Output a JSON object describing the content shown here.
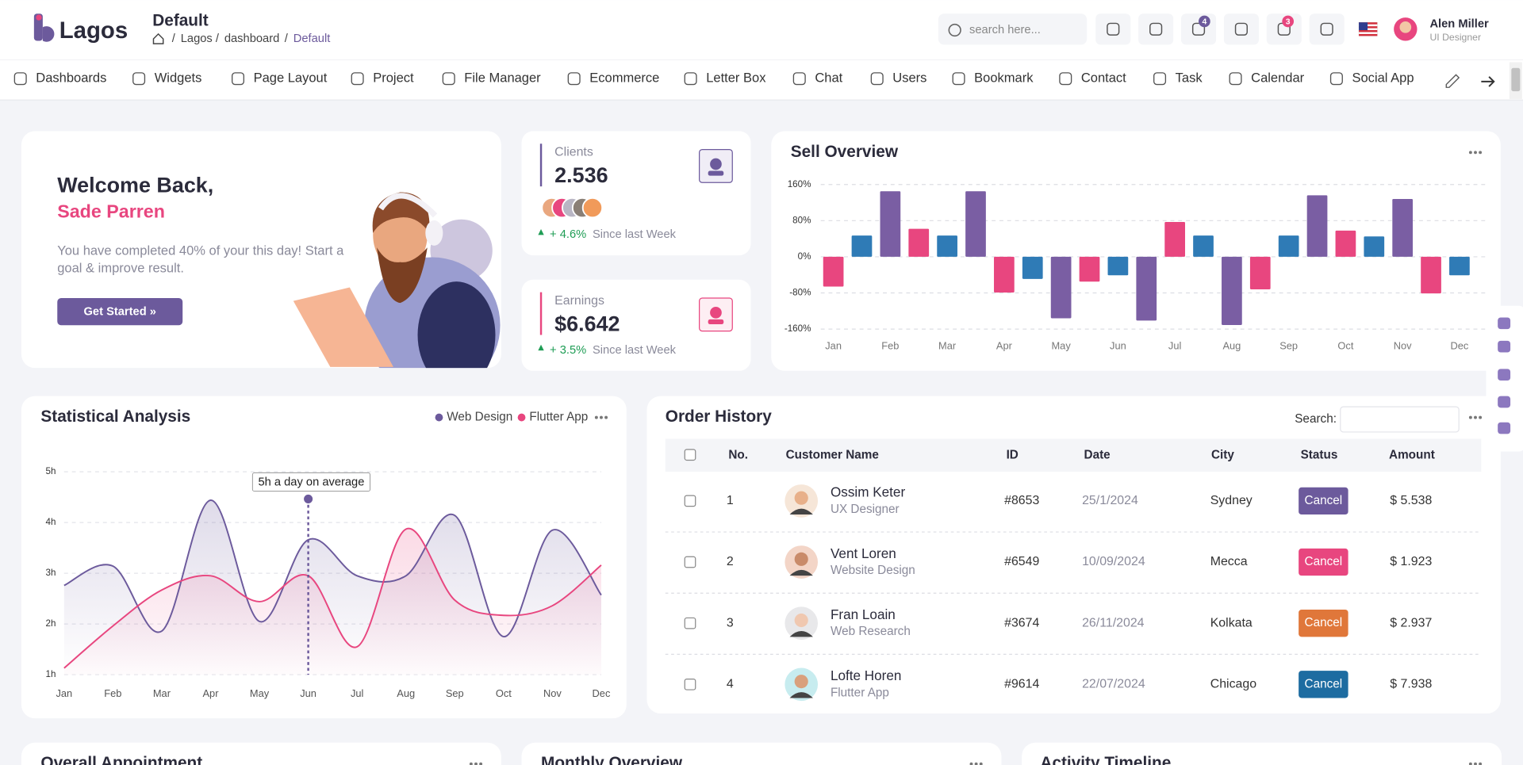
{
  "header": {
    "logo": "Lagos",
    "page_title": "Default",
    "breadcrumb_separator": "/",
    "breadcrumb": [
      "Lagos",
      "dashboard",
      "Default"
    ],
    "search_placeholder": "search here...",
    "notification_count": 4,
    "message_count": 3,
    "user_name": "Alen Miller",
    "user_role": "UI Designer"
  },
  "nav": [
    "Dashboards",
    "Widgets",
    "Page Layout",
    "Project",
    "File Manager",
    "Ecommerce",
    "Letter Box",
    "Chat",
    "Users",
    "Bookmark",
    "Contact",
    "Task",
    "Calendar",
    "Social App"
  ],
  "welcome": {
    "greeting": "Welcome Back,",
    "name": "Sade Parren",
    "message_lines": [
      "You have completed 40% of your this day! Start a",
      "goal & improve result."
    ],
    "button": "Get Started »"
  },
  "clients": {
    "label": "Clients",
    "value": "2.536",
    "change": "+ 4.6%",
    "period": "Since last Week"
  },
  "earnings": {
    "label": "Earnings",
    "value": "$6.642",
    "change": "+ 3.5%",
    "period": "Since last Week"
  },
  "chart_data": [
    {
      "type": "bar",
      "title": "Sell Overview",
      "categories": [
        "Jan",
        null,
        "Feb",
        null,
        "Mar",
        null,
        "Apr",
        null,
        "May",
        null,
        "Jun",
        null,
        "Jul",
        null,
        "Aug",
        null,
        "Sep",
        null,
        "Oct",
        null,
        "Nov",
        null,
        "Dec"
      ],
      "values": [
        -66,
        47,
        145,
        62,
        47,
        145,
        -79,
        -49,
        -136,
        -55,
        -41,
        -141,
        77,
        47,
        -151,
        -72,
        47,
        136,
        58,
        45,
        128,
        -81,
        -41
      ],
      "colors": [
        "#e8467f",
        "#2f7bb6",
        "#7a5ea3"
      ],
      "ylim": [
        -160,
        160
      ],
      "yticks": [
        {
          "value": -160,
          "label": "-160%"
        },
        {
          "value": -80,
          "label": "-80%"
        },
        {
          "value": 0,
          "label": "0%"
        },
        {
          "value": 80,
          "label": "80%"
        },
        {
          "value": 160,
          "label": "160%"
        }
      ],
      "grid": true
    },
    {
      "type": "line",
      "title": "Statistical Analysis",
      "categories": [
        "Jan",
        "Feb",
        "Mar",
        "Apr",
        "May",
        "Jun",
        "Jul",
        "Aug",
        "Sep",
        "Oct",
        "Nov",
        "Dec"
      ],
      "series": [
        {
          "name": "Web Design",
          "color": "#6c5a9c",
          "values": [
            2.76,
            3.14,
            1.86,
            4.44,
            2.05,
            3.66,
            2.95,
            2.95,
            4.14,
            1.75,
            3.85,
            2.57
          ]
        },
        {
          "name": "Flutter App",
          "color": "#e8467f",
          "values": [
            1.13,
            1.96,
            2.67,
            2.95,
            2.44,
            2.95,
            1.55,
            3.87,
            2.47,
            2.17,
            2.36,
            3.16
          ]
        }
      ],
      "ylim": [
        1,
        5
      ],
      "yticks": [
        {
          "value": 1,
          "label": "1h"
        },
        {
          "value": 2,
          "label": "2h"
        },
        {
          "value": 3,
          "label": "3h"
        },
        {
          "value": 4,
          "label": "4h"
        },
        {
          "value": 5,
          "label": "5h"
        }
      ],
      "grid": true,
      "annotation": "5h a day on average"
    }
  ],
  "order_history": {
    "title": "Order History",
    "search_label": "Search:",
    "columns": [
      "No.",
      "Customer Name",
      "ID",
      "Date",
      "City",
      "Status",
      "Amount"
    ],
    "rows": [
      {
        "no": 1,
        "name": "Ossim Keter",
        "role": "UX Designer",
        "id": "#8653",
        "date": "25/1/2024",
        "city": "Sydney",
        "status": "Cancel",
        "status_color": "#6c5a9c",
        "amount": "$ 5.538"
      },
      {
        "no": 2,
        "name": "Vent Loren",
        "role": "Website Design",
        "id": "#6549",
        "date": "10/09/2024",
        "city": "Mecca",
        "status": "Cancel",
        "status_color": "#e8467f",
        "amount": "$ 1.923"
      },
      {
        "no": 3,
        "name": "Fran Loain",
        "role": "Web Research",
        "id": "#3674",
        "date": "26/11/2024",
        "city": "Kolkata",
        "status": "Cancel",
        "status_color": "#e0773a",
        "amount": "$ 2.937"
      },
      {
        "no": 4,
        "name": "Lofte Horen",
        "role": "Flutter App",
        "id": "#9614",
        "date": "22/07/2024",
        "city": "Chicago",
        "status": "Cancel",
        "status_color": "#1d6ca1",
        "amount": "$ 7.938"
      }
    ]
  },
  "bottom_cards": [
    "Overall Appointment",
    "Monthly Overview",
    "Activity Timeline"
  ]
}
